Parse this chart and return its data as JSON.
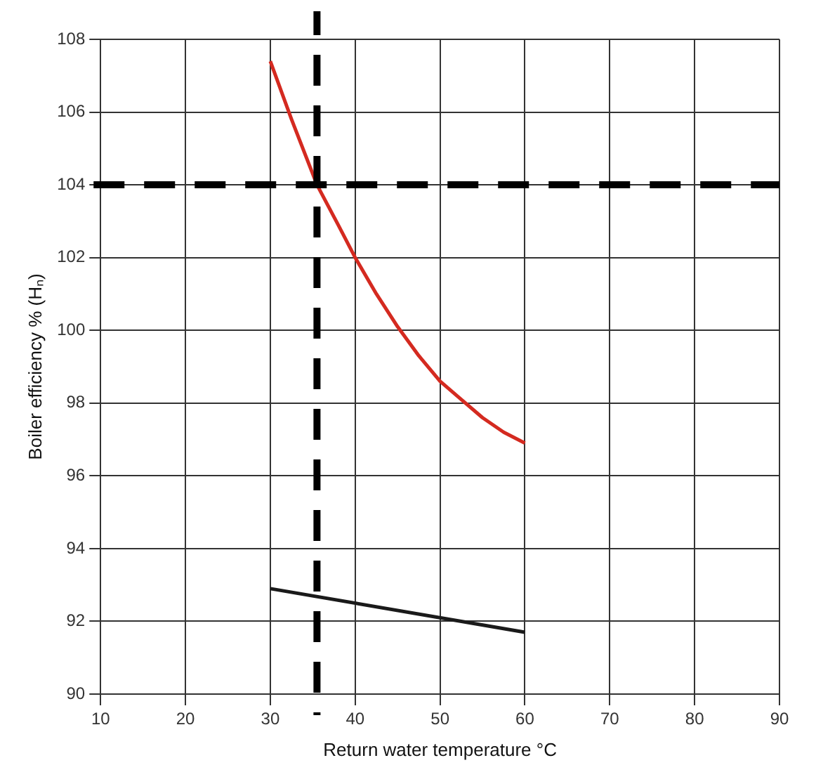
{
  "chart_data": {
    "type": "line",
    "xlabel": "Return water temperature °C",
    "ylabel": "Boiler efficiency % (Hₙ)",
    "xlim": [
      10,
      90
    ],
    "xticks": [
      10,
      20,
      30,
      40,
      50,
      60,
      70,
      80,
      90
    ],
    "ylim": [
      90,
      108
    ],
    "yticks": [
      90,
      92,
      94,
      96,
      98,
      100,
      102,
      104,
      106,
      108
    ],
    "grid": true,
    "legend": false,
    "marker": "none",
    "line_style": "solid",
    "series": [
      {
        "color": "#d42a20",
        "x": [
          30,
          32.5,
          35.5,
          38,
          40,
          42.5,
          45,
          47.5,
          50,
          52.5,
          55,
          57.5,
          60
        ],
        "values": [
          107.4,
          105.8,
          104,
          102.9,
          102,
          101,
          100.1,
          99.3,
          98.6,
          98.1,
          97.6,
          97.2,
          96.9
        ]
      },
      {
        "color": "#1a1a1a",
        "x": [
          30,
          60
        ],
        "values": [
          92.9,
          91.7
        ]
      }
    ],
    "ref_lines": [
      {
        "axis": "x",
        "value": 35.5,
        "color": "#000000",
        "line_style": "dashed"
      },
      {
        "axis": "y",
        "value": 104,
        "color": "#000000",
        "line_style": "dashed"
      }
    ]
  }
}
